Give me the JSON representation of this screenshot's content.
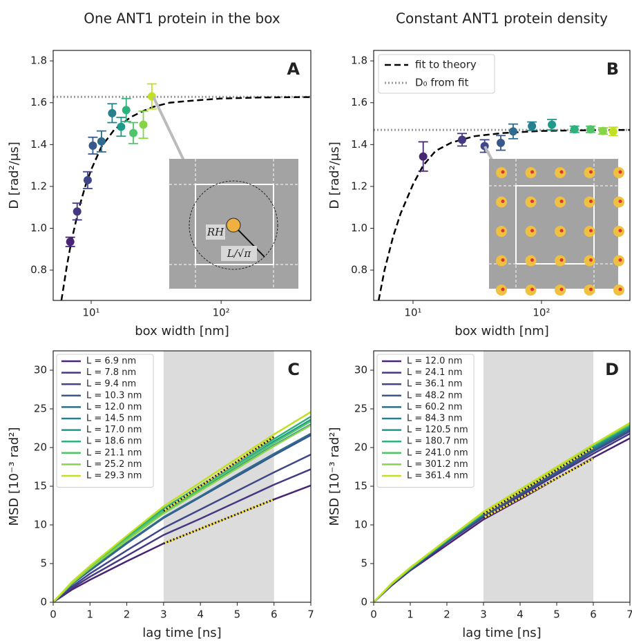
{
  "chart_data": [
    {
      "type": "scatter",
      "title": "One ANT1 protein in the box",
      "letter": "A",
      "xlabel": "box width [nm]",
      "ylabel": "D [rad²/μs]",
      "xscale": "log",
      "xlim": [
        5.1,
        490
      ],
      "ylim": [
        0.655,
        1.85
      ],
      "xticks": [
        {
          "value": 10,
          "label": "10¹"
        },
        {
          "value": 100,
          "label": "10²"
        }
      ],
      "yticks": [
        0.8,
        {
          "value": 1,
          "label": "1.0"
        },
        1.2,
        1.4,
        1.6,
        1.8
      ],
      "points": {
        "x": [
          6.9,
          7.8,
          9.4,
          10.3,
          12.0,
          14.5,
          17.0,
          18.6,
          21.1,
          25.2,
          29.3
        ],
        "values": [
          0.935,
          1.08,
          1.23,
          1.395,
          1.415,
          1.55,
          1.485,
          1.565,
          1.455,
          1.495,
          1.63
        ],
        "errors": [
          0.022,
          0.04,
          0.04,
          0.04,
          0.05,
          0.045,
          0.045,
          0.055,
          0.05,
          0.065,
          0.06
        ],
        "colors": [
          "#482475",
          "#453781",
          "#3f4788",
          "#38588c",
          "#2f6b8e",
          "#26818e",
          "#1f9a8a",
          "#2db27d",
          "#52c569",
          "#86d549",
          "#c2df23"
        ]
      },
      "fit": {
        "color": "#000000",
        "x": [
          5.9,
          6.5,
          7,
          8,
          9,
          10,
          12,
          15,
          20,
          25,
          30,
          40,
          60,
          100,
          200,
          490
        ],
        "values": [
          0.655,
          0.82,
          0.93,
          1.09,
          1.2,
          1.28,
          1.39,
          1.47,
          1.53,
          1.56,
          1.58,
          1.6,
          1.61,
          1.62,
          1.625,
          1.627
        ]
      },
      "d0": {
        "color": "#999999",
        "value": 1.628
      },
      "annotations": [
        "RH",
        "L/√π"
      ]
    },
    {
      "type": "scatter",
      "title": "Constant ANT1 protein density",
      "letter": "B",
      "xlabel": "box width [nm]",
      "ylabel": "D [rad²/μs]",
      "xscale": "log",
      "xlim": [
        4.94,
        488
      ],
      "ylim": [
        0.655,
        1.85
      ],
      "xticks": [
        {
          "value": 10,
          "label": "10¹"
        },
        {
          "value": 100,
          "label": "10²"
        }
      ],
      "yticks": [
        0.8,
        {
          "value": 1,
          "label": "1.0"
        },
        1.2,
        1.4,
        1.6,
        1.8
      ],
      "points": {
        "x": [
          12.0,
          24.1,
          36.1,
          48.2,
          60.2,
          84.3,
          120.5,
          180.7,
          241.0,
          301.2,
          361.4
        ],
        "values": [
          1.343,
          1.423,
          1.393,
          1.408,
          1.463,
          1.488,
          1.495,
          1.473,
          1.473,
          1.465,
          1.463
        ],
        "errors": [
          0.07,
          0.03,
          0.03,
          0.035,
          0.035,
          0.02,
          0.025,
          0.015,
          0.015,
          0.015,
          0.02
        ],
        "colors": [
          "#482475",
          "#453781",
          "#3f4788",
          "#38588c",
          "#2f6b8e",
          "#26818e",
          "#1f9a8a",
          "#2db27d",
          "#52c569",
          "#86d549",
          "#c2df23"
        ]
      },
      "fit": {
        "name": "fit to theory",
        "color": "#000000",
        "x": [
          5.4,
          6,
          7,
          8,
          10,
          12,
          15,
          20,
          30,
          50,
          100,
          200,
          490
        ],
        "values": [
          0.655,
          0.8,
          0.96,
          1.07,
          1.21,
          1.3,
          1.37,
          1.41,
          1.44,
          1.455,
          1.465,
          1.468,
          1.47
        ]
      },
      "d0": {
        "name": "D₀ from fit",
        "color": "#999999",
        "value": 1.47
      }
    },
    {
      "type": "line",
      "letter": "C",
      "xlabel": "lag time [ns]",
      "ylabel": "MSD [10⁻³ rad²]",
      "xlim": [
        0,
        7
      ],
      "ylim": [
        0,
        32.5
      ],
      "xticks": [
        0,
        1,
        2,
        3,
        4,
        5,
        6,
        7
      ],
      "yticks": [
        0,
        5,
        10,
        15,
        20,
        25,
        30
      ],
      "shade": [
        3,
        6
      ],
      "x": [
        0,
        0.5,
        1,
        2,
        3,
        4,
        5,
        6,
        7
      ],
      "series": [
        {
          "name": "L = 6.9 nm",
          "color": "#482475",
          "values": [
            0,
            1.6,
            2.9,
            5.3,
            7.6,
            9.5,
            11.4,
            13.3,
            15.1
          ]
        },
        {
          "name": "L = 7.8 nm",
          "color": "#453781",
          "values": [
            0,
            1.8,
            3.3,
            6.0,
            8.7,
            10.8,
            13.0,
            15.2,
            17.2
          ]
        },
        {
          "name": "L = 9.4 nm",
          "color": "#3f4788",
          "values": [
            0,
            2.0,
            3.7,
            6.7,
            9.6,
            12.0,
            14.4,
            16.8,
            19.1
          ]
        },
        {
          "name": "L = 10.3 nm",
          "color": "#38588c",
          "values": [
            0,
            2.3,
            4.1,
            7.6,
            10.9,
            13.6,
            16.3,
            19.0,
            21.6
          ]
        },
        {
          "name": "L = 12.0 nm",
          "color": "#2f6b8e",
          "values": [
            0,
            2.3,
            4.2,
            7.7,
            11.0,
            13.7,
            16.5,
            19.2,
            21.8
          ]
        },
        {
          "name": "L = 14.5 nm",
          "color": "#26818e",
          "values": [
            0,
            2.4,
            4.4,
            8.1,
            11.6,
            14.5,
            17.4,
            20.3,
            23.0
          ]
        },
        {
          "name": "L = 17.0 nm",
          "color": "#1f9a8a",
          "values": [
            0,
            2.5,
            4.5,
            8.3,
            11.9,
            14.8,
            17.8,
            20.8,
            23.6
          ]
        },
        {
          "name": "L = 18.6 nm",
          "color": "#2db27d",
          "values": [
            0,
            2.5,
            4.6,
            8.4,
            12.1,
            15.1,
            18.1,
            21.1,
            24.0
          ]
        },
        {
          "name": "L = 21.1 nm",
          "color": "#52c569",
          "values": [
            0,
            2.5,
            4.5,
            8.2,
            11.8,
            14.7,
            17.7,
            20.6,
            23.4
          ]
        },
        {
          "name": "L = 25.2 nm",
          "color": "#86d549",
          "values": [
            0,
            2.4,
            4.4,
            8.0,
            11.5,
            14.4,
            17.3,
            20.2,
            22.9
          ]
        },
        {
          "name": "L = 29.3 nm",
          "color": "#c2df23",
          "values": [
            0,
            2.6,
            4.7,
            8.6,
            12.4,
            15.5,
            18.6,
            21.7,
            24.6
          ]
        }
      ],
      "fits": [
        {
          "x": [
            3,
            6
          ],
          "values": [
            7.6,
            13.3
          ]
        },
        {
          "x": [
            3,
            6
          ],
          "values": [
            11.8,
            21.4
          ]
        }
      ]
    },
    {
      "type": "line",
      "letter": "D",
      "xlabel": "lag time [ns]",
      "ylabel": "MSD [10⁻³ rad²]",
      "xlim": [
        0,
        7
      ],
      "ylim": [
        0,
        32.5
      ],
      "xticks": [
        0,
        1,
        2,
        3,
        4,
        5,
        6,
        7
      ],
      "yticks": [
        0,
        5,
        10,
        15,
        20,
        25,
        30
      ],
      "shade": [
        3,
        6
      ],
      "x": [
        0,
        0.5,
        1,
        2,
        3,
        4,
        5,
        6,
        7
      ],
      "series": [
        {
          "name": "L = 12.0 nm",
          "color": "#482475",
          "values": [
            0,
            2.2,
            4.1,
            7.4,
            10.7,
            13.3,
            16.0,
            18.7,
            21.2
          ]
        },
        {
          "name": "L = 24.1 nm",
          "color": "#453781",
          "values": [
            0,
            2.3,
            4.2,
            7.7,
            11.0,
            13.7,
            16.5,
            19.2,
            21.8
          ]
        },
        {
          "name": "L = 36.1 nm",
          "color": "#3f4788",
          "values": [
            0,
            2.3,
            4.2,
            7.8,
            11.1,
            13.9,
            16.7,
            19.5,
            22.1
          ]
        },
        {
          "name": "L = 48.2 nm",
          "color": "#38588c",
          "values": [
            0,
            2.4,
            4.3,
            7.8,
            11.2,
            14.0,
            16.8,
            19.6,
            22.3
          ]
        },
        {
          "name": "L = 60.2 nm",
          "color": "#2f6b8e",
          "values": [
            0,
            2.4,
            4.3,
            7.9,
            11.3,
            14.2,
            17.0,
            19.8,
            22.5
          ]
        },
        {
          "name": "L = 84.3 nm",
          "color": "#26818e",
          "values": [
            0,
            2.4,
            4.3,
            7.9,
            11.4,
            14.2,
            17.1,
            19.9,
            22.6
          ]
        },
        {
          "name": "L = 120.5 nm",
          "color": "#1f9a8a",
          "values": [
            0,
            2.4,
            4.4,
            8.0,
            11.5,
            14.3,
            17.2,
            20.1,
            22.8
          ]
        },
        {
          "name": "L = 180.7 nm",
          "color": "#2db27d",
          "values": [
            0,
            2.4,
            4.4,
            8.0,
            11.5,
            14.4,
            17.3,
            20.2,
            22.9
          ]
        },
        {
          "name": "L = 241.0 nm",
          "color": "#52c569",
          "values": [
            0,
            2.4,
            4.4,
            8.1,
            11.6,
            14.5,
            17.4,
            20.3,
            23.0
          ]
        },
        {
          "name": "L = 301.2 nm",
          "color": "#86d549",
          "values": [
            0,
            2.4,
            4.4,
            8.1,
            11.6,
            14.5,
            17.4,
            20.4,
            23.1
          ]
        },
        {
          "name": "L = 361.4 nm",
          "color": "#c2df23",
          "values": [
            0,
            2.5,
            4.5,
            8.1,
            11.7,
            14.6,
            17.5,
            20.4,
            23.2
          ]
        }
      ],
      "fits": [
        {
          "x": [
            3,
            6
          ],
          "values": [
            10.9,
            18.6
          ]
        },
        {
          "x": [
            3,
            6
          ],
          "values": [
            11.4,
            20.0
          ]
        }
      ]
    }
  ]
}
